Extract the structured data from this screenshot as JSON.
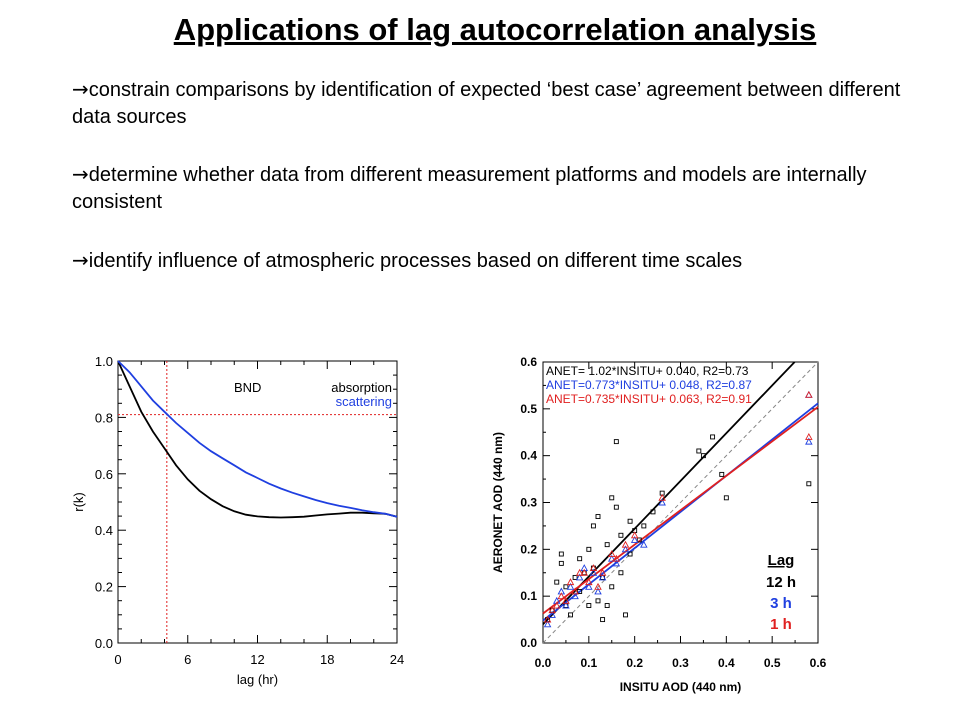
{
  "slide": {
    "title": "Applications of lag autocorrelation analysis",
    "bullet_glyph": "→",
    "bullets": [
      "constrain comparisons by identification of expected ‘best case’ agreement between different data sources",
      "determine whether data from different measurement platforms and models are internally consistent",
      "identify influence of atmospheric processes based on different time scales"
    ]
  },
  "chart_data": [
    {
      "type": "line",
      "xlabel": "lag (hr)",
      "ylabel": "r(k)",
      "xlim": [
        0,
        24
      ],
      "ylim": [
        0.0,
        1.0
      ],
      "xticks": [
        "0",
        "6",
        "12",
        "18",
        "24"
      ],
      "yticks": [
        "0.0",
        "0.2",
        "0.4",
        "0.6",
        "0.8",
        "1.0"
      ],
      "annotation": "BND",
      "legend": [
        "absorption",
        "scattering"
      ],
      "legend_colors": [
        "#000000",
        "#1f3fe0"
      ],
      "reference_lines": {
        "x": 4.2,
        "y": 0.81,
        "color": "#e02020"
      },
      "series": [
        {
          "name": "absorption",
          "color": "#000000",
          "x": [
            0,
            1,
            2,
            3,
            4,
            5,
            6,
            7,
            8,
            9,
            10,
            11,
            12,
            13,
            14,
            15,
            16,
            17,
            18,
            19,
            20,
            21,
            22,
            23,
            24
          ],
          "y": [
            1.0,
            0.91,
            0.82,
            0.75,
            0.69,
            0.63,
            0.58,
            0.54,
            0.51,
            0.485,
            0.467,
            0.455,
            0.449,
            0.446,
            0.445,
            0.446,
            0.448,
            0.452,
            0.456,
            0.459,
            0.462,
            0.462,
            0.46,
            0.458,
            0.448
          ]
        },
        {
          "name": "scattering",
          "color": "#1f3fe0",
          "x": [
            0,
            1,
            2,
            3,
            4,
            5,
            6,
            7,
            8,
            9,
            10,
            11,
            12,
            13,
            14,
            15,
            16,
            17,
            18,
            19,
            20,
            21,
            22,
            23,
            24
          ],
          "y": [
            1.0,
            0.96,
            0.91,
            0.86,
            0.82,
            0.78,
            0.745,
            0.71,
            0.68,
            0.655,
            0.63,
            0.605,
            0.585,
            0.565,
            0.548,
            0.533,
            0.52,
            0.507,
            0.496,
            0.487,
            0.479,
            0.471,
            0.464,
            0.458,
            0.448
          ]
        }
      ]
    },
    {
      "type": "scatter",
      "xlabel": "INSITU AOD (440 nm)",
      "ylabel": "AERONET AOD (440 nm)",
      "xlim": [
        0.0,
        0.6
      ],
      "ylim": [
        0.0,
        0.6
      ],
      "xticks": [
        "0.0",
        "0.1",
        "0.2",
        "0.3",
        "0.4",
        "0.5",
        "0.6"
      ],
      "yticks": [
        "0.0",
        "0.1",
        "0.2",
        "0.3",
        "0.4",
        "0.5",
        "0.6"
      ],
      "one_to_one_line": true,
      "annotations": [
        {
          "text": "ANET= 1.02*INSITU+ 0.040, R2=0.73",
          "color": "#000000"
        },
        {
          "text": "ANET=0.773*INSITU+ 0.048, R2=0.87",
          "color": "#1f3fe0"
        },
        {
          "text": "ANET=0.735*INSITU+ 0.063, R2=0.91",
          "color": "#e02020"
        }
      ],
      "legend_title": "Lag",
      "legend": [
        {
          "label": "12 h",
          "color": "#000000"
        },
        {
          "label": "3 h",
          "color": "#1f3fe0"
        },
        {
          "label": "1 h",
          "color": "#e02020"
        }
      ],
      "fits": [
        {
          "name": "12 h",
          "slope": 1.02,
          "intercept": 0.04,
          "color": "#000000"
        },
        {
          "name": "3 h",
          "slope": 0.773,
          "intercept": 0.048,
          "color": "#1f3fe0"
        },
        {
          "name": "1 h",
          "slope": 0.735,
          "intercept": 0.063,
          "color": "#e02020"
        }
      ],
      "series": [
        {
          "name": "12 h",
          "marker": "square",
          "color": "#000000",
          "points": [
            [
              0.01,
              0.05
            ],
            [
              0.02,
              0.07
            ],
            [
              0.03,
              0.13
            ],
            [
              0.04,
              0.19
            ],
            [
              0.04,
              0.17
            ],
            [
              0.05,
              0.08
            ],
            [
              0.05,
              0.12
            ],
            [
              0.06,
              0.06
            ],
            [
              0.07,
              0.14
            ],
            [
              0.08,
              0.18
            ],
            [
              0.08,
              0.11
            ],
            [
              0.09,
              0.15
            ],
            [
              0.1,
              0.2
            ],
            [
              0.1,
              0.08
            ],
            [
              0.11,
              0.25
            ],
            [
              0.11,
              0.16
            ],
            [
              0.12,
              0.27
            ],
            [
              0.12,
              0.09
            ],
            [
              0.13,
              0.05
            ],
            [
              0.13,
              0.14
            ],
            [
              0.14,
              0.21
            ],
            [
              0.14,
              0.08
            ],
            [
              0.15,
              0.12
            ],
            [
              0.15,
              0.31
            ],
            [
              0.16,
              0.43
            ],
            [
              0.16,
              0.29
            ],
            [
              0.17,
              0.23
            ],
            [
              0.17,
              0.15
            ],
            [
              0.18,
              0.06
            ],
            [
              0.19,
              0.26
            ],
            [
              0.19,
              0.19
            ],
            [
              0.2,
              0.24
            ],
            [
              0.21,
              0.22
            ],
            [
              0.22,
              0.25
            ],
            [
              0.24,
              0.28
            ],
            [
              0.26,
              0.32
            ],
            [
              0.34,
              0.41
            ],
            [
              0.35,
              0.4
            ],
            [
              0.37,
              0.44
            ],
            [
              0.39,
              0.36
            ],
            [
              0.4,
              0.31
            ],
            [
              0.58,
              0.34
            ]
          ]
        },
        {
          "name": "3 h",
          "marker": "triangle",
          "color": "#1f3fe0",
          "points": [
            [
              0.01,
              0.04
            ],
            [
              0.02,
              0.06
            ],
            [
              0.03,
              0.09
            ],
            [
              0.04,
              0.11
            ],
            [
              0.05,
              0.08
            ],
            [
              0.06,
              0.12
            ],
            [
              0.07,
              0.1
            ],
            [
              0.08,
              0.14
            ],
            [
              0.09,
              0.16
            ],
            [
              0.1,
              0.12
            ],
            [
              0.11,
              0.15
            ],
            [
              0.12,
              0.11
            ],
            [
              0.13,
              0.14
            ],
            [
              0.15,
              0.18
            ],
            [
              0.16,
              0.17
            ],
            [
              0.18,
              0.2
            ],
            [
              0.2,
              0.22
            ],
            [
              0.22,
              0.21
            ],
            [
              0.26,
              0.3
            ],
            [
              0.58,
              0.53
            ],
            [
              0.58,
              0.43
            ]
          ]
        },
        {
          "name": "1 h",
          "marker": "triangle",
          "color": "#e02020",
          "points": [
            [
              0.01,
              0.05
            ],
            [
              0.02,
              0.07
            ],
            [
              0.03,
              0.08
            ],
            [
              0.04,
              0.1
            ],
            [
              0.05,
              0.09
            ],
            [
              0.06,
              0.13
            ],
            [
              0.07,
              0.11
            ],
            [
              0.08,
              0.15
            ],
            [
              0.09,
              0.15
            ],
            [
              0.1,
              0.13
            ],
            [
              0.11,
              0.16
            ],
            [
              0.12,
              0.12
            ],
            [
              0.13,
              0.15
            ],
            [
              0.15,
              0.19
            ],
            [
              0.16,
              0.18
            ],
            [
              0.18,
              0.21
            ],
            [
              0.2,
              0.23
            ],
            [
              0.26,
              0.31
            ],
            [
              0.58,
              0.53
            ],
            [
              0.58,
              0.44
            ]
          ]
        }
      ]
    }
  ]
}
